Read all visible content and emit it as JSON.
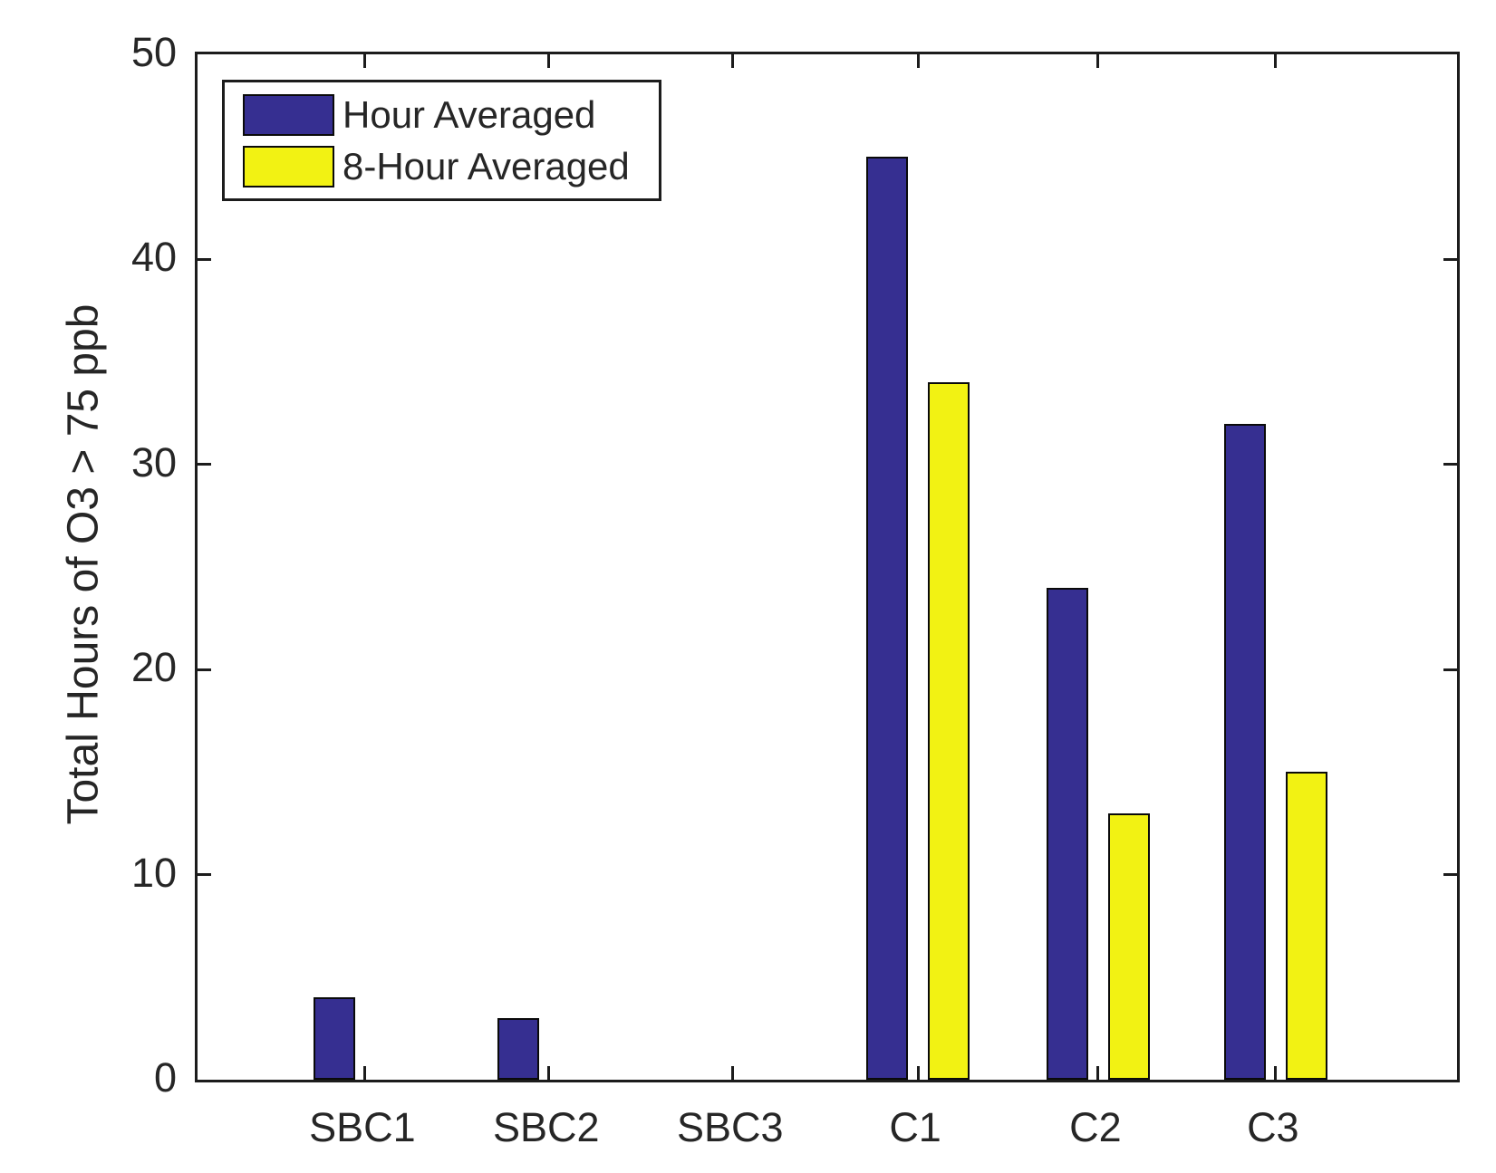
{
  "figure": {
    "background": "#ffffff",
    "axis_color": "#1c1c1c",
    "text_color": "#262626",
    "bar_outline_color": "#0a0a0a"
  },
  "chart_data": {
    "type": "bar",
    "title": "",
    "categories": [
      "SBC1",
      "SBC2",
      "SBC3",
      "C1",
      "C2",
      "C3"
    ],
    "series": [
      {
        "name": "Hour Averaged",
        "color": "#362F91",
        "values": [
          4,
          3,
          0,
          45,
          24,
          32
        ]
      },
      {
        "name": "8-Hour Averaged",
        "color": "#F2F213",
        "values": [
          0,
          0,
          0,
          34,
          13,
          15
        ]
      }
    ],
    "xlabel": "",
    "ylabel": "Total Hours of O3 > 75 ppb",
    "ylim": [
      0,
      50
    ],
    "yticks": [
      0,
      10,
      20,
      30,
      40,
      50
    ],
    "grid": false,
    "legend_position": "top-left",
    "legend_entries": [
      "Hour Averaged",
      "8-Hour Averaged"
    ]
  }
}
